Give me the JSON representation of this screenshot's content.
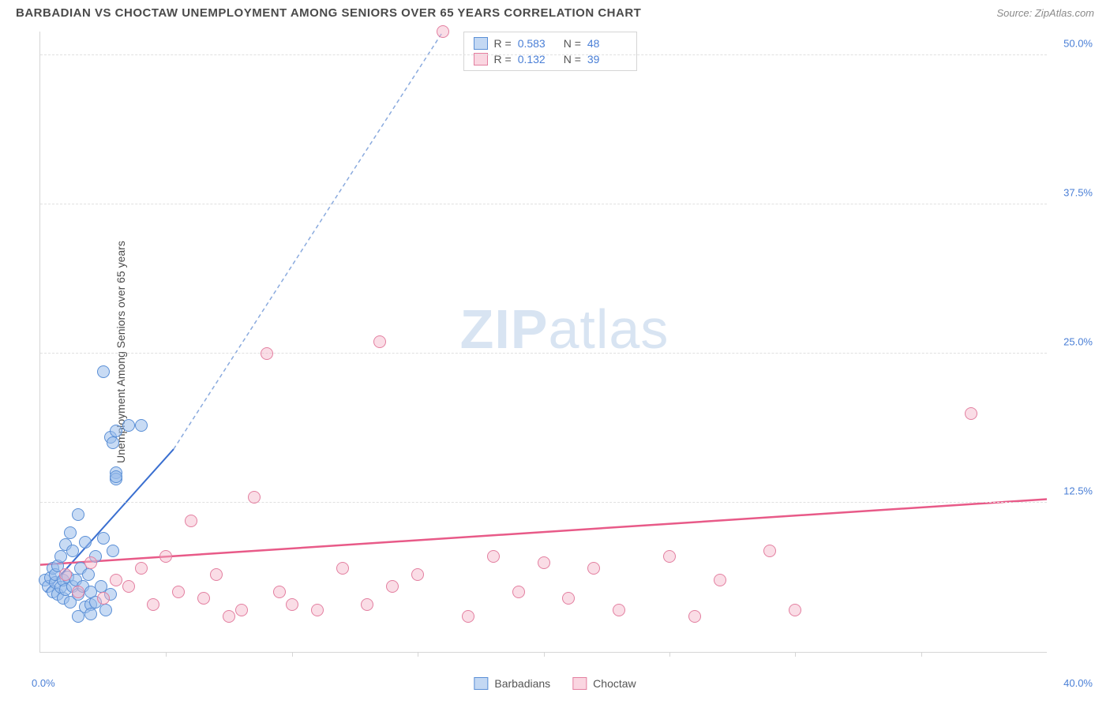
{
  "header": {
    "title": "BARBADIAN VS CHOCTAW UNEMPLOYMENT AMONG SENIORS OVER 65 YEARS CORRELATION CHART",
    "source": "Source: ZipAtlas.com"
  },
  "ylabel": "Unemployment Among Seniors over 65 years",
  "watermark": {
    "zip": "ZIP",
    "atlas": "atlas"
  },
  "chart": {
    "type": "scatter",
    "background_color": "#ffffff",
    "grid_color": "#e0e0e0",
    "axis_color": "#d5d5d5",
    "label_color": "#4a7fd6",
    "title_fontsize": 15,
    "label_fontsize": 14,
    "tick_fontsize": 13,
    "xlim": [
      0,
      40
    ],
    "ylim": [
      0,
      52
    ],
    "yticks": [
      {
        "v": 12.5,
        "label": "12.5%"
      },
      {
        "v": 25.0,
        "label": "25.0%"
      },
      {
        "v": 37.5,
        "label": "37.5%"
      },
      {
        "v": 50.0,
        "label": "50.0%"
      }
    ],
    "xticks_minor": [
      5,
      10,
      15,
      20,
      25,
      30,
      35
    ],
    "x_origin_label": "0.0%",
    "x_max_label": "40.0%",
    "marker_radius": 8,
    "series": {
      "barbadians": {
        "label": "Barbadians",
        "fill": "rgba(155,190,235,0.55)",
        "stroke": "#5a8fd6",
        "points": [
          [
            0.2,
            6.0
          ],
          [
            0.3,
            5.5
          ],
          [
            0.4,
            6.2
          ],
          [
            0.5,
            5.0
          ],
          [
            0.5,
            7.0
          ],
          [
            0.6,
            5.8
          ],
          [
            0.6,
            6.5
          ],
          [
            0.7,
            4.8
          ],
          [
            0.7,
            7.2
          ],
          [
            0.8,
            5.4
          ],
          [
            0.8,
            8.0
          ],
          [
            0.9,
            6.0
          ],
          [
            0.9,
            4.5
          ],
          [
            1.0,
            5.2
          ],
          [
            1.0,
            9.0
          ],
          [
            1.1,
            6.3
          ],
          [
            1.2,
            4.2
          ],
          [
            1.2,
            10.0
          ],
          [
            1.3,
            5.5
          ],
          [
            1.3,
            8.5
          ],
          [
            1.4,
            6.0
          ],
          [
            1.5,
            11.5
          ],
          [
            1.5,
            4.8
          ],
          [
            1.6,
            7.0
          ],
          [
            1.7,
            5.5
          ],
          [
            1.8,
            9.2
          ],
          [
            1.8,
            3.8
          ],
          [
            1.9,
            6.5
          ],
          [
            2.0,
            5.0
          ],
          [
            2.0,
            4.0
          ],
          [
            2.2,
            8.0
          ],
          [
            2.2,
            4.2
          ],
          [
            2.4,
            5.5
          ],
          [
            2.5,
            9.5
          ],
          [
            2.6,
            3.5
          ],
          [
            2.8,
            4.8
          ],
          [
            2.9,
            8.5
          ],
          [
            3.0,
            15.0
          ],
          [
            3.0,
            14.5
          ],
          [
            3.0,
            14.7
          ],
          [
            2.8,
            18.0
          ],
          [
            2.9,
            17.5
          ],
          [
            3.5,
            19.0
          ],
          [
            3.0,
            18.5
          ],
          [
            4.0,
            19.0
          ],
          [
            2.5,
            23.5
          ],
          [
            1.5,
            3.0
          ],
          [
            2.0,
            3.2
          ]
        ],
        "trend": {
          "x1": 0.2,
          "y1": 5.0,
          "x2": 5.3,
          "y2": 17.0,
          "x2d": 16.0,
          "y2d": 52.0,
          "color": "#3a6fd0",
          "dash_color": "#8aaade",
          "width": 2
        }
      },
      "choctaw": {
        "label": "Choctaw",
        "fill": "rgba(245,180,200,0.45)",
        "stroke": "#e37fa0",
        "points": [
          [
            1.0,
            6.5
          ],
          [
            1.5,
            5.0
          ],
          [
            2.0,
            7.5
          ],
          [
            2.5,
            4.5
          ],
          [
            3.0,
            6.0
          ],
          [
            3.5,
            5.5
          ],
          [
            4.0,
            7.0
          ],
          [
            4.5,
            4.0
          ],
          [
            5.0,
            8.0
          ],
          [
            5.5,
            5.0
          ],
          [
            6.0,
            11.0
          ],
          [
            6.5,
            4.5
          ],
          [
            7.0,
            6.5
          ],
          [
            8.0,
            3.5
          ],
          [
            8.5,
            13.0
          ],
          [
            9.0,
            25.0
          ],
          [
            9.5,
            5.0
          ],
          [
            10.0,
            4.0
          ],
          [
            11.0,
            3.5
          ],
          [
            12.0,
            7.0
          ],
          [
            13.0,
            4.0
          ],
          [
            13.5,
            26.0
          ],
          [
            14.0,
            5.5
          ],
          [
            15.0,
            6.5
          ],
          [
            16.0,
            52.0
          ],
          [
            17.0,
            3.0
          ],
          [
            18.0,
            8.0
          ],
          [
            19.0,
            5.0
          ],
          [
            20.0,
            7.5
          ],
          [
            21.0,
            4.5
          ],
          [
            22.0,
            7.0
          ],
          [
            23.0,
            3.5
          ],
          [
            25.0,
            8.0
          ],
          [
            26.0,
            3.0
          ],
          [
            27.0,
            6.0
          ],
          [
            29.0,
            8.5
          ],
          [
            30.0,
            3.5
          ],
          [
            37.0,
            20.0
          ],
          [
            7.5,
            3.0
          ]
        ],
        "trend": {
          "x1": 0,
          "y1": 7.3,
          "x2": 40,
          "y2": 12.8,
          "color": "#e85a88",
          "width": 2.5
        }
      }
    },
    "correlation_legend": {
      "rows": [
        {
          "swatch": "b",
          "r_label": "R =",
          "r": "0.583",
          "n_label": "N =",
          "n": "48"
        },
        {
          "swatch": "p",
          "r_label": "R =",
          "r": "0.132",
          "n_label": "N =",
          "n": "39"
        }
      ]
    },
    "bottom_legend": [
      {
        "swatch": "b",
        "label": "Barbadians"
      },
      {
        "swatch": "p",
        "label": "Choctaw"
      }
    ]
  }
}
